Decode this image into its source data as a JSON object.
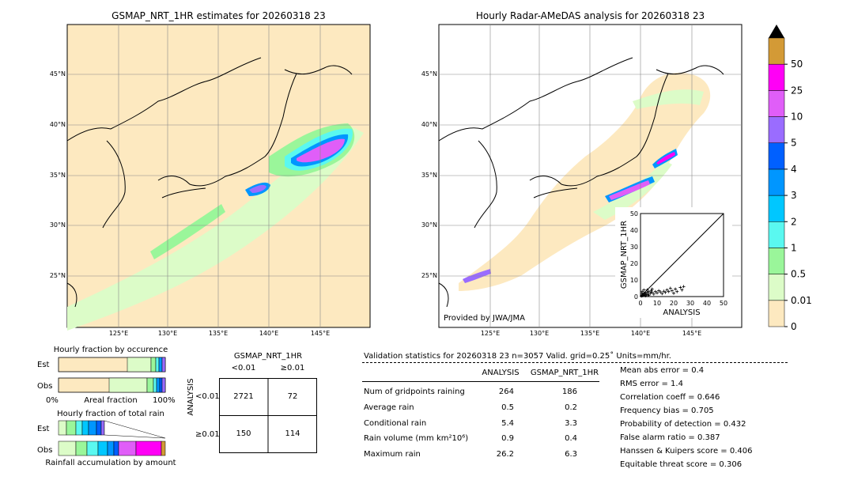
{
  "left_map": {
    "title": "GSMAP_NRT_1HR estimates for 20260318 23",
    "lat_labels": [
      "45°N",
      "40°N",
      "35°N",
      "30°N",
      "25°N"
    ],
    "lon_labels": [
      "125°E",
      "130°E",
      "135°E",
      "140°E",
      "145°E"
    ]
  },
  "right_map": {
    "title": "Hourly Radar-AMeDAS analysis for 20260318 23",
    "lat_labels": [
      "45°N",
      "40°N",
      "35°N",
      "30°N",
      "25°N"
    ],
    "lon_labels": [
      "125°E",
      "130°E",
      "135°E",
      "140°E",
      "145°E"
    ],
    "credit": "Provided by JWA/JMA"
  },
  "colorbar": {
    "labels": [
      "0",
      "0.01",
      "0.5",
      "1",
      "2",
      "3",
      "4",
      "5",
      "10",
      "25",
      "50"
    ],
    "colors": [
      "#fde9c0",
      "#dcfcc8",
      "#9af69a",
      "#5af8f0",
      "#00c7ff",
      "#0096ff",
      "#0060ff",
      "#9a6cff",
      "#e05ef8",
      "#ff00f6",
      "#d39a36"
    ]
  },
  "fraction_occurrence": {
    "title": "Hourly fraction by occurence",
    "rows": [
      "Est",
      "Obs"
    ],
    "axis_left": "0%",
    "axis_mid": "Areal fraction",
    "axis_right": "100%"
  },
  "fraction_total": {
    "title": "Hourly fraction of total rain",
    "rows": [
      "Est",
      "Obs"
    ],
    "footer": "Rainfall accumulation by amount"
  },
  "contingency": {
    "title": "GSMAP_NRT_1HR",
    "col_labels": [
      "<0.01",
      "≥0.01"
    ],
    "row_axis": "ANALYSIS",
    "row_labels": [
      "<0.01",
      "≥0.01"
    ],
    "cells": [
      [
        "2721",
        "72"
      ],
      [
        "150",
        "114"
      ]
    ]
  },
  "validation": {
    "header": "Validation statistics for 20260318 23  n=3057 Valid. grid=0.25˚ Units=mm/hr.",
    "col_analysis": "ANALYSIS",
    "col_gsmap": "GSMAP_NRT_1HR",
    "rows": [
      {
        "label": "Num of gridpoints raining",
        "analysis": "264",
        "gsmap": "186"
      },
      {
        "label": "Average rain",
        "analysis": "0.5",
        "gsmap": "0.2"
      },
      {
        "label": "Conditional rain",
        "analysis": "5.4",
        "gsmap": "3.3"
      },
      {
        "label": "Rain volume (mm km²10⁶)",
        "analysis": "0.9",
        "gsmap": "0.4"
      },
      {
        "label": "Maximum rain",
        "analysis": "26.2",
        "gsmap": "6.3"
      }
    ],
    "scores": [
      "Mean abs error =    0.4",
      "RMS error =    1.4",
      "Correlation coeff =  0.646",
      "Frequency bias =  0.705",
      "Probability of detection =  0.432",
      "False alarm ratio =  0.387",
      "Hanssen & Kuipers score =  0.406",
      "Equitable threat score =  0.306"
    ]
  },
  "chart_data": {
    "type": "scatter",
    "xlabel": "ANALYSIS",
    "ylabel": "GSMAP_NRT_1HR",
    "xlim": [
      0,
      50
    ],
    "ylim": [
      0,
      50
    ],
    "ticks": [
      "0",
      "10",
      "20",
      "30",
      "40",
      "50"
    ],
    "points": [
      [
        0.5,
        0.3
      ],
      [
        1,
        0.5
      ],
      [
        1.5,
        1
      ],
      [
        2,
        0.8
      ],
      [
        2.5,
        1.5
      ],
      [
        3,
        2
      ],
      [
        3.5,
        1
      ],
      [
        4,
        2.5
      ],
      [
        4.5,
        1.2
      ],
      [
        5,
        3
      ],
      [
        6,
        2
      ],
      [
        6.5,
        3.5
      ],
      [
        7,
        2.5
      ],
      [
        8,
        1.5
      ],
      [
        9,
        3
      ],
      [
        10,
        2.2
      ],
      [
        11,
        3.5
      ],
      [
        12,
        2.8
      ],
      [
        13,
        1.8
      ],
      [
        14,
        3.2
      ],
      [
        15,
        2.5
      ],
      [
        16,
        4
      ],
      [
        17,
        3
      ],
      [
        18,
        5
      ],
      [
        19,
        3.5
      ],
      [
        20,
        2
      ],
      [
        21,
        4.5
      ],
      [
        22,
        3
      ],
      [
        24,
        5.5
      ],
      [
        25,
        4
      ],
      [
        26,
        6
      ],
      [
        1,
        3
      ],
      [
        2,
        4
      ],
      [
        0.8,
        2
      ],
      [
        3,
        0.5
      ],
      [
        5,
        0.8
      ],
      [
        7,
        4.5
      ],
      [
        2,
        2
      ],
      [
        4,
        4
      ],
      [
        1,
        1
      ]
    ]
  }
}
